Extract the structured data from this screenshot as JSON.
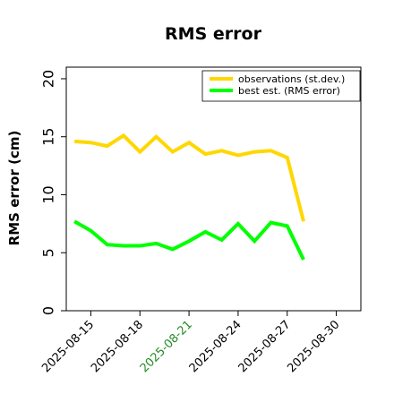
{
  "chart_data": {
    "type": "line",
    "title": "RMS error",
    "ylabel": "RMS error (cm)",
    "ylim": [
      0,
      21
    ],
    "yticks": [
      0,
      5,
      10,
      15,
      20
    ],
    "xlim_days": [
      "2025-08-13T12:00",
      "2025-08-31T12:00"
    ],
    "xticks": [
      {
        "label": "2025-08-15",
        "color": "#000000"
      },
      {
        "label": "2025-08-18",
        "color": "#000000"
      },
      {
        "label": "2025-08-21",
        "color": "#228B22"
      },
      {
        "label": "2025-08-24",
        "color": "#000000"
      },
      {
        "label": "2025-08-27",
        "color": "#000000"
      },
      {
        "label": "2025-08-30",
        "color": "#000000"
      }
    ],
    "grid": false,
    "legend_position": "top-right",
    "x": [
      "2025-08-14",
      "2025-08-15",
      "2025-08-16",
      "2025-08-17",
      "2025-08-18",
      "2025-08-19",
      "2025-08-20",
      "2025-08-21",
      "2025-08-22",
      "2025-08-23",
      "2025-08-24",
      "2025-08-25",
      "2025-08-26",
      "2025-08-27",
      "2025-08-28",
      "2025-08-28T12:00"
    ],
    "series": [
      {
        "name": "observations (st.dev.)",
        "color": "#FFD700",
        "values": [
          14.6,
          14.5,
          14.2,
          15.1,
          13.7,
          15.0,
          13.7,
          14.5,
          13.5,
          13.8,
          13.4,
          13.7,
          13.8,
          13.2,
          7.7,
          null
        ]
      },
      {
        "name": "best est. (RMS error)",
        "color": "#00FF00",
        "values": [
          7.7,
          6.9,
          5.7,
          5.6,
          5.6,
          5.8,
          5.3,
          6.0,
          6.8,
          6.1,
          7.5,
          6.0,
          7.6,
          7.3,
          4.4,
          null
        ]
      }
    ]
  }
}
